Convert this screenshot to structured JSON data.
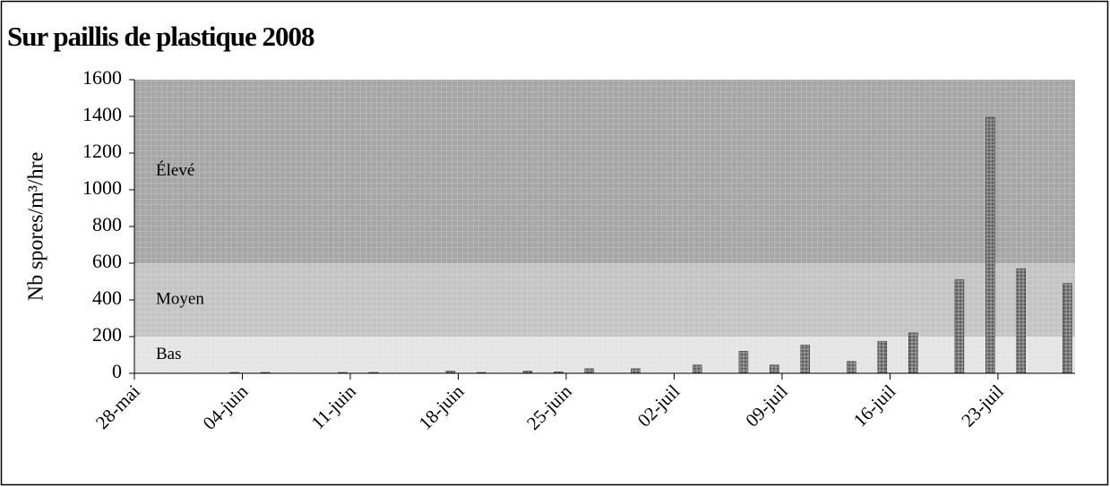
{
  "chart_data": {
    "type": "bar",
    "title": "Sur paillis de plastique 2008",
    "y_label": "Nb spores/m³/hre",
    "x": [
      6.5,
      8.5,
      13.5,
      15.5,
      20.5,
      22.5,
      25.5,
      27.5,
      29.5,
      32.5,
      36.5,
      39.5,
      41.5,
      43.5,
      46.5,
      48.5,
      50.5,
      53.5,
      55.5,
      57.5,
      60.5
    ],
    "values": [
      5,
      5,
      5,
      5,
      12,
      5,
      12,
      8,
      25,
      25,
      45,
      120,
      45,
      155,
      65,
      175,
      220,
      510,
      1395,
      570,
      490
    ],
    "color": "#5a5a5a",
    "xlim": [
      0,
      61
    ],
    "xticks": [
      {
        "value": 0,
        "label": "28-mai"
      },
      {
        "value": 7,
        "label": "04-juin"
      },
      {
        "value": 14,
        "label": "11-juin"
      },
      {
        "value": 21,
        "label": "18-juin"
      },
      {
        "value": 28,
        "label": "25-juin"
      },
      {
        "value": 35,
        "label": "02-juil"
      },
      {
        "value": 42,
        "label": "09-juil"
      },
      {
        "value": 49,
        "label": "16-juil"
      },
      {
        "value": 56,
        "label": "23-juil"
      }
    ],
    "ylim": [
      0,
      1600
    ],
    "yticks": [
      0,
      200,
      400,
      600,
      800,
      1000,
      1200,
      1400,
      1600
    ],
    "zones": [
      {
        "label": "Bas",
        "from": 0,
        "to": 200,
        "color": "#e4e4e4"
      },
      {
        "label": "Moyen",
        "from": 200,
        "to": 600,
        "color": "#c4c4c4"
      },
      {
        "label": "Élevé",
        "from": 600,
        "to": 1600,
        "color": "#a6a6a6"
      }
    ]
  }
}
